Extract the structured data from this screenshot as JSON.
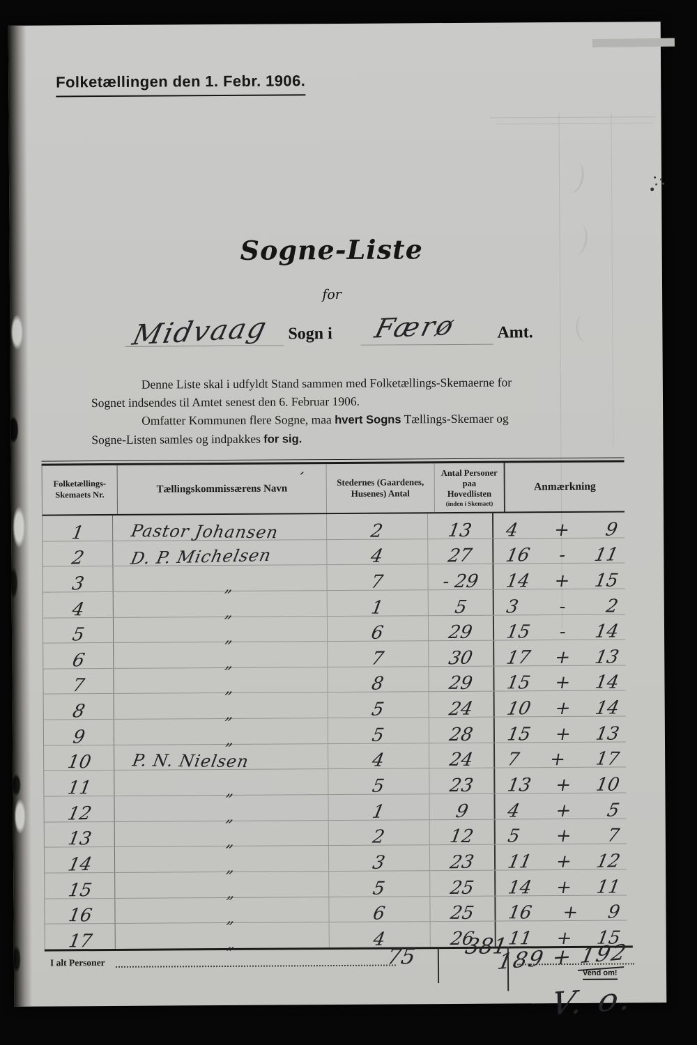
{
  "header": {
    "title": "Folketællingen den 1. Febr. 1906."
  },
  "title": {
    "main": "Sogne-Liste",
    "sub": "for"
  },
  "sogn": {
    "sogn_value": "Midvaag",
    "sogn_label": "Sogn i",
    "amt_value": "Færø",
    "amt_label": "Amt."
  },
  "instructions": [
    {
      "indent": true,
      "parts": [
        {
          "text": "Denne Liste skal i udfyldt Stand sammen med Folketællings-Skemaerne for",
          "bold": false
        }
      ]
    },
    {
      "indent": false,
      "parts": [
        {
          "text": "Sognet indsendes til Amtet senest den 6. Februar 1906.",
          "bold": false
        }
      ]
    },
    {
      "indent": true,
      "parts": [
        {
          "text": "Omfatter Kommunen flere Sogne, maa ",
          "bold": false
        },
        {
          "text": "hvert Sogns",
          "bold": true
        },
        {
          "text": " Tællings-Skemaer og",
          "bold": false
        }
      ]
    },
    {
      "indent": false,
      "parts": [
        {
          "text": "Sogne-Listen samles og indpakkes ",
          "bold": false
        },
        {
          "text": "for sig.",
          "bold": true
        }
      ]
    }
  ],
  "table": {
    "pen_mark": "’",
    "col_headers": [
      {
        "line1": "Folketællings-",
        "line2": "Skemaets Nr.",
        "sub": ""
      },
      {
        "line1": "Tællingskommissærens Navn",
        "line2": "",
        "sub": ""
      },
      {
        "line1": "Stedernes (Gaardenes,",
        "line2": "Husenes) Antal",
        "sub": ""
      },
      {
        "line1": "Antal Personer paa",
        "line2": "Hovedlisten",
        "sub": "(inden i Skemaet)"
      },
      {
        "line1": "Anmærkning",
        "line2": "",
        "sub": ""
      }
    ],
    "rows": [
      {
        "nr": "1",
        "navn": "Pastor Johansen",
        "steder": "2",
        "personer": "13",
        "anm_a": "4",
        "anm_op": "+",
        "anm_b": "9"
      },
      {
        "nr": "2",
        "navn": "D. P. Michelsen",
        "steder": "4",
        "personer": "27",
        "anm_a": "16",
        "anm_op": "-",
        "anm_b": "11"
      },
      {
        "nr": "3",
        "navn": "„",
        "steder": "7",
        "personer": "- 29",
        "anm_a": "14",
        "anm_op": "+",
        "anm_b": "15"
      },
      {
        "nr": "4",
        "navn": "„",
        "steder": "1",
        "personer": "5",
        "anm_a": "3",
        "anm_op": "-",
        "anm_b": "2"
      },
      {
        "nr": "5",
        "navn": "„",
        "steder": "6",
        "personer": "29",
        "anm_a": "15",
        "anm_op": "-",
        "anm_b": "14"
      },
      {
        "nr": "6",
        "navn": "„",
        "steder": "7",
        "personer": "30",
        "anm_a": "17",
        "anm_op": "+",
        "anm_b": "13"
      },
      {
        "nr": "7",
        "navn": "„",
        "steder": "8",
        "personer": "29",
        "anm_a": "15",
        "anm_op": "+",
        "anm_b": "14"
      },
      {
        "nr": "8",
        "navn": "„",
        "steder": "5",
        "personer": "24",
        "anm_a": "10",
        "anm_op": "+",
        "anm_b": "14"
      },
      {
        "nr": "9",
        "navn": "„",
        "steder": "5",
        "personer": "28",
        "anm_a": "15",
        "anm_op": "+",
        "anm_b": "13"
      },
      {
        "nr": "10",
        "navn": "P. N. Nielsen",
        "steder": "4",
        "personer": "24",
        "anm_a": "7",
        "anm_op": "+",
        "anm_b": "17"
      },
      {
        "nr": "11",
        "navn": "„",
        "steder": "5",
        "personer": "23",
        "anm_a": "13",
        "anm_op": "+",
        "anm_b": "10"
      },
      {
        "nr": "12",
        "navn": "„",
        "steder": "1",
        "personer": "9",
        "anm_a": "4",
        "anm_op": "+",
        "anm_b": "5"
      },
      {
        "nr": "13",
        "navn": "„",
        "steder": "2",
        "personer": "12",
        "anm_a": "5",
        "anm_op": "+",
        "anm_b": "7"
      },
      {
        "nr": "14",
        "navn": "„",
        "steder": "3",
        "personer": "23",
        "anm_a": "11",
        "anm_op": "+",
        "anm_b": "12"
      },
      {
        "nr": "15",
        "navn": "„",
        "steder": "5",
        "personer": "25",
        "anm_a": "14",
        "anm_op": "+",
        "anm_b": "11"
      },
      {
        "nr": "16",
        "navn": "„",
        "steder": "6",
        "personer": "25",
        "anm_a": "16",
        "anm_op": "+",
        "anm_b": "9"
      },
      {
        "nr": "17",
        "navn": "„",
        "steder": "4",
        "personer": "26",
        "anm_a": "11",
        "anm_op": "+",
        "anm_b": "15"
      }
    ],
    "totals": {
      "label": "I alt Personer",
      "steder": "75",
      "personer": "381",
      "anm_a": "189",
      "anm_op": "+",
      "anm_b": "192"
    }
  },
  "footer": {
    "vend_om": "Vend om!",
    "vo": "V. o."
  }
}
